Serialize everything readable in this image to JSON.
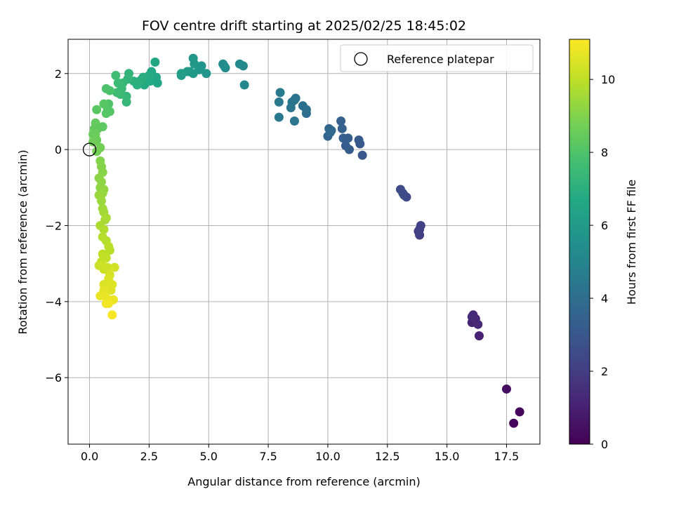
{
  "chart_data": {
    "type": "scatter",
    "title": "FOV centre drift starting at 2025/02/25 18:45:02",
    "xlabel": "Angular distance from reference (arcmin)",
    "ylabel": "Rotation from reference (arcmin)",
    "xlim": [
      -0.9,
      18.9
    ],
    "ylim": [
      -7.75,
      2.9
    ],
    "xticks": [
      0.0,
      2.5,
      5.0,
      7.5,
      10.0,
      12.5,
      15.0,
      17.5
    ],
    "xtick_labels": [
      "0.0",
      "2.5",
      "5.0",
      "7.5",
      "10.0",
      "12.5",
      "15.0",
      "17.5"
    ],
    "yticks": [
      -6,
      -4,
      -2,
      0,
      2
    ],
    "ytick_labels": [
      "−6",
      "−4",
      "−2",
      "0",
      "2"
    ],
    "grid": true,
    "legend": {
      "placement": "top-right",
      "entries": [
        "Reference platepar"
      ]
    },
    "reference_point": {
      "x": 0.0,
      "y": 0.0
    },
    "colorbar": {
      "label": "Hours from first FF file",
      "range": [
        0,
        11.1
      ],
      "ticks": [
        0,
        2,
        4,
        6,
        8,
        10
      ],
      "tick_labels": [
        "0",
        "2",
        "4",
        "6",
        "8",
        "10"
      ],
      "colormap": "viridis"
    },
    "points": [
      {
        "x": 17.8,
        "y": -7.2,
        "t": 0.1
      },
      {
        "x": 18.05,
        "y": -6.9,
        "t": 0.2
      },
      {
        "x": 17.5,
        "y": -6.3,
        "t": 0.4
      },
      {
        "x": 16.35,
        "y": -4.9,
        "t": 1.0
      },
      {
        "x": 16.05,
        "y": -4.55,
        "t": 1.1
      },
      {
        "x": 16.3,
        "y": -4.6,
        "t": 1.2
      },
      {
        "x": 16.1,
        "y": -4.35,
        "t": 1.25
      },
      {
        "x": 16.2,
        "y": -4.45,
        "t": 1.3
      },
      {
        "x": 16.05,
        "y": -4.4,
        "t": 1.35
      },
      {
        "x": 13.85,
        "y": -2.25,
        "t": 2.0
      },
      {
        "x": 13.8,
        "y": -2.15,
        "t": 2.05
      },
      {
        "x": 13.9,
        "y": -2.0,
        "t": 2.1
      },
      {
        "x": 13.85,
        "y": -2.1,
        "t": 2.15
      },
      {
        "x": 13.3,
        "y": -1.25,
        "t": 2.4
      },
      {
        "x": 13.2,
        "y": -1.2,
        "t": 2.45
      },
      {
        "x": 13.05,
        "y": -1.05,
        "t": 2.5
      },
      {
        "x": 13.15,
        "y": -1.15,
        "t": 2.55
      },
      {
        "x": 11.45,
        "y": -0.15,
        "t": 3.0
      },
      {
        "x": 11.35,
        "y": 0.15,
        "t": 3.05
      },
      {
        "x": 11.3,
        "y": 0.25,
        "t": 3.1
      },
      {
        "x": 10.9,
        "y": 0.0,
        "t": 3.2
      },
      {
        "x": 10.75,
        "y": 0.1,
        "t": 3.25
      },
      {
        "x": 10.85,
        "y": 0.3,
        "t": 3.3
      },
      {
        "x": 10.65,
        "y": 0.3,
        "t": 3.35
      },
      {
        "x": 10.6,
        "y": 0.55,
        "t": 3.4
      },
      {
        "x": 10.55,
        "y": 0.75,
        "t": 3.45
      },
      {
        "x": 10.0,
        "y": 0.35,
        "t": 3.6
      },
      {
        "x": 10.05,
        "y": 0.55,
        "t": 3.65
      },
      {
        "x": 10.15,
        "y": 0.5,
        "t": 3.7
      },
      {
        "x": 10.1,
        "y": 0.45,
        "t": 3.75
      },
      {
        "x": 9.1,
        "y": 0.95,
        "t": 4.0
      },
      {
        "x": 9.1,
        "y": 1.05,
        "t": 4.05
      },
      {
        "x": 8.95,
        "y": 1.15,
        "t": 4.1
      },
      {
        "x": 8.6,
        "y": 1.3,
        "t": 4.15
      },
      {
        "x": 8.65,
        "y": 1.35,
        "t": 4.2
      },
      {
        "x": 8.5,
        "y": 1.25,
        "t": 4.25
      },
      {
        "x": 8.45,
        "y": 1.1,
        "t": 4.3
      },
      {
        "x": 8.6,
        "y": 0.75,
        "t": 4.35
      },
      {
        "x": 7.95,
        "y": 0.85,
        "t": 4.45
      },
      {
        "x": 7.95,
        "y": 1.25,
        "t": 4.5
      },
      {
        "x": 8.0,
        "y": 1.5,
        "t": 4.55
      },
      {
        "x": 6.5,
        "y": 1.7,
        "t": 5.1
      },
      {
        "x": 6.45,
        "y": 2.2,
        "t": 5.15
      },
      {
        "x": 6.3,
        "y": 2.25,
        "t": 5.2
      },
      {
        "x": 5.7,
        "y": 2.15,
        "t": 5.3
      },
      {
        "x": 5.6,
        "y": 2.25,
        "t": 5.35
      },
      {
        "x": 5.65,
        "y": 2.2,
        "t": 5.4
      },
      {
        "x": 4.9,
        "y": 2.0,
        "t": 5.7
      },
      {
        "x": 4.7,
        "y": 2.2,
        "t": 5.75
      },
      {
        "x": 4.6,
        "y": 2.1,
        "t": 5.8
      },
      {
        "x": 4.35,
        "y": 2.4,
        "t": 5.85
      },
      {
        "x": 4.4,
        "y": 2.25,
        "t": 5.9
      },
      {
        "x": 4.35,
        "y": 2.0,
        "t": 5.95
      },
      {
        "x": 4.2,
        "y": 2.05,
        "t": 6.0
      },
      {
        "x": 4.1,
        "y": 2.05,
        "t": 6.05
      },
      {
        "x": 3.85,
        "y": 1.95,
        "t": 6.1
      },
      {
        "x": 3.85,
        "y": 2.0,
        "t": 6.15
      },
      {
        "x": 2.85,
        "y": 1.75,
        "t": 6.5
      },
      {
        "x": 2.8,
        "y": 1.9,
        "t": 6.55
      },
      {
        "x": 2.75,
        "y": 2.3,
        "t": 6.6
      },
      {
        "x": 2.6,
        "y": 2.05,
        "t": 6.65
      },
      {
        "x": 2.55,
        "y": 1.8,
        "t": 6.7
      },
      {
        "x": 2.5,
        "y": 1.95,
        "t": 6.75
      },
      {
        "x": 2.3,
        "y": 1.7,
        "t": 6.8
      },
      {
        "x": 2.25,
        "y": 1.9,
        "t": 6.85
      },
      {
        "x": 2.2,
        "y": 1.85,
        "t": 6.9
      },
      {
        "x": 2.1,
        "y": 1.8,
        "t": 6.95
      },
      {
        "x": 2.0,
        "y": 1.7,
        "t": 7.0
      },
      {
        "x": 1.85,
        "y": 1.8,
        "t": 7.05
      },
      {
        "x": 1.65,
        "y": 2.0,
        "t": 7.2
      },
      {
        "x": 1.6,
        "y": 1.85,
        "t": 7.25
      },
      {
        "x": 1.55,
        "y": 1.4,
        "t": 7.3
      },
      {
        "x": 1.55,
        "y": 1.25,
        "t": 7.35
      },
      {
        "x": 1.4,
        "y": 1.75,
        "t": 7.4
      },
      {
        "x": 1.35,
        "y": 1.6,
        "t": 7.45
      },
      {
        "x": 1.3,
        "y": 1.45,
        "t": 7.5
      },
      {
        "x": 1.2,
        "y": 1.75,
        "t": 7.55
      },
      {
        "x": 1.15,
        "y": 1.5,
        "t": 7.6
      },
      {
        "x": 1.1,
        "y": 1.95,
        "t": 7.65
      },
      {
        "x": 0.85,
        "y": 1.55,
        "t": 7.9
      },
      {
        "x": 0.7,
        "y": 1.6,
        "t": 7.95
      },
      {
        "x": 0.8,
        "y": 1.2,
        "t": 8.0
      },
      {
        "x": 0.75,
        "y": 1.1,
        "t": 8.05
      },
      {
        "x": 0.85,
        "y": 1.0,
        "t": 8.1
      },
      {
        "x": 0.7,
        "y": 0.95,
        "t": 8.15
      },
      {
        "x": 0.6,
        "y": 1.2,
        "t": 8.2
      },
      {
        "x": 0.3,
        "y": 1.05,
        "t": 8.25
      },
      {
        "x": 0.55,
        "y": 0.6,
        "t": 8.3
      },
      {
        "x": 0.35,
        "y": 0.55,
        "t": 8.35
      },
      {
        "x": 0.2,
        "y": 0.55,
        "t": 8.4
      },
      {
        "x": 0.25,
        "y": 0.7,
        "t": 8.45
      },
      {
        "x": 0.15,
        "y": 0.4,
        "t": 8.5
      },
      {
        "x": 0.25,
        "y": 0.4,
        "t": 8.55
      },
      {
        "x": 0.3,
        "y": 0.25,
        "t": 8.6
      },
      {
        "x": 0.15,
        "y": 0.2,
        "t": 8.65
      },
      {
        "x": 0.45,
        "y": 0.05,
        "t": 8.7
      },
      {
        "x": 0.3,
        "y": -0.05,
        "t": 8.75
      },
      {
        "x": 0.45,
        "y": -0.3,
        "t": 9.0
      },
      {
        "x": 0.5,
        "y": -0.45,
        "t": 9.05
      },
      {
        "x": 0.55,
        "y": -0.6,
        "t": 9.1
      },
      {
        "x": 0.4,
        "y": -0.75,
        "t": 9.15
      },
      {
        "x": 0.5,
        "y": -0.85,
        "t": 9.2
      },
      {
        "x": 0.45,
        "y": -1.0,
        "t": 9.25
      },
      {
        "x": 0.6,
        "y": -1.05,
        "t": 9.3
      },
      {
        "x": 0.55,
        "y": -1.15,
        "t": 9.35
      },
      {
        "x": 0.4,
        "y": -1.2,
        "t": 9.4
      },
      {
        "x": 0.5,
        "y": -1.35,
        "t": 9.45
      },
      {
        "x": 0.55,
        "y": -1.55,
        "t": 9.5
      },
      {
        "x": 0.6,
        "y": -1.65,
        "t": 9.55
      },
      {
        "x": 0.65,
        "y": -1.85,
        "t": 9.6
      },
      {
        "x": 0.7,
        "y": -1.8,
        "t": 9.65
      },
      {
        "x": 0.45,
        "y": -2.0,
        "t": 9.7
      },
      {
        "x": 0.6,
        "y": -2.1,
        "t": 9.75
      },
      {
        "x": 0.55,
        "y": -2.3,
        "t": 9.8
      },
      {
        "x": 0.7,
        "y": -2.4,
        "t": 9.85
      },
      {
        "x": 0.85,
        "y": -2.65,
        "t": 9.9
      },
      {
        "x": 0.8,
        "y": -2.55,
        "t": 9.95
      },
      {
        "x": 0.55,
        "y": -2.75,
        "t": 10.0
      },
      {
        "x": 0.7,
        "y": -2.85,
        "t": 10.05
      },
      {
        "x": 0.5,
        "y": -2.95,
        "t": 10.1
      },
      {
        "x": 0.4,
        "y": -3.05,
        "t": 10.2
      },
      {
        "x": 0.6,
        "y": -3.15,
        "t": 10.25
      },
      {
        "x": 0.75,
        "y": -3.1,
        "t": 10.3
      },
      {
        "x": 1.05,
        "y": -3.1,
        "t": 10.35
      },
      {
        "x": 0.85,
        "y": -3.3,
        "t": 10.4
      },
      {
        "x": 0.8,
        "y": -3.4,
        "t": 10.45
      },
      {
        "x": 0.6,
        "y": -3.55,
        "t": 10.5
      },
      {
        "x": 0.95,
        "y": -3.55,
        "t": 10.55
      },
      {
        "x": 0.9,
        "y": -3.7,
        "t": 10.6
      },
      {
        "x": 0.6,
        "y": -3.7,
        "t": 10.65
      },
      {
        "x": 0.45,
        "y": -3.85,
        "t": 10.7
      },
      {
        "x": 0.7,
        "y": -3.9,
        "t": 10.75
      },
      {
        "x": 1.0,
        "y": -3.95,
        "t": 10.8
      },
      {
        "x": 0.7,
        "y": -4.05,
        "t": 10.85
      },
      {
        "x": 0.8,
        "y": -4.05,
        "t": 10.9
      },
      {
        "x": 0.95,
        "y": -4.35,
        "t": 11.0
      }
    ]
  }
}
